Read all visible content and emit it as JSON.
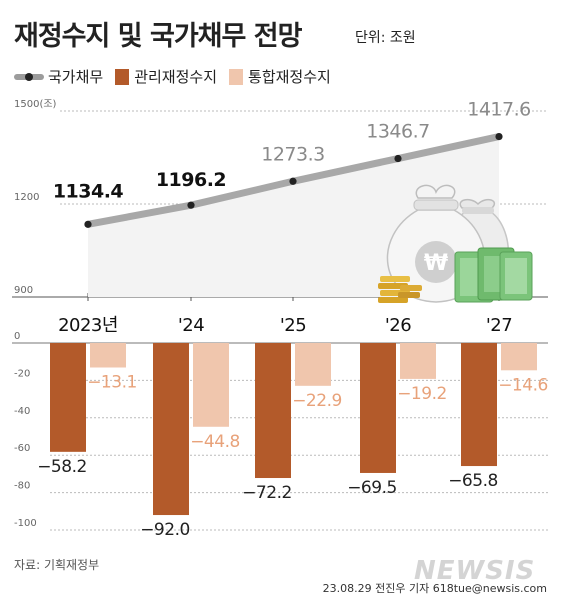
{
  "header": {
    "title": "재정수지 및 국가채무 전망",
    "unit": "단위: 조원"
  },
  "footer": {
    "source": "자료: 기획재정부",
    "credit": "23.08.29 전진우 기자 618tue@newsis.com",
    "watermark": "NEWSIS"
  },
  "colors": {
    "debt_line": "#a8a8a8",
    "debt_area": "#f3f3f3",
    "managed_balance": "#b35a2a",
    "consolidated_balance": "#f0c6ad",
    "consolidated_label": "#e8a27a",
    "grid": "#bbbbbb"
  },
  "icons": [
    "money-bag-icon",
    "coin-stack-icon",
    "banknote-stack-icon"
  ],
  "chart_data": [
    {
      "type": "line",
      "title": "재정수지 및 국가채무 전망",
      "categories": [
        "2023년",
        "'24",
        "'25",
        "'26",
        "'27"
      ],
      "series": [
        {
          "name": "국가채무",
          "values": [
            1134.4,
            1196.2,
            1273.3,
            1346.7,
            1417.6
          ],
          "labels": [
            "1134.4",
            "1196.2",
            "1273.3",
            "1346.7",
            "1417.6"
          ]
        }
      ],
      "ylim": [
        900,
        1500
      ],
      "yticks": [
        "900",
        "1200",
        "1500(조)"
      ],
      "grid": true
    },
    {
      "type": "bar",
      "categories": [
        "2023년",
        "'24",
        "'25",
        "'26",
        "'27"
      ],
      "series": [
        {
          "name": "관리재정수지",
          "values": [
            -58.2,
            -92.0,
            -72.2,
            -69.5,
            -65.8
          ],
          "labels": [
            "−58.2",
            "−92.0",
            "−72.2",
            "−69.5",
            "−65.8"
          ]
        },
        {
          "name": "통합재정수지",
          "values": [
            -13.1,
            -44.8,
            -22.9,
            -19.2,
            -14.6
          ],
          "labels": [
            "−13.1",
            "−44.8",
            "−22.9",
            "−19.2",
            "−14.6"
          ]
        }
      ],
      "ylim": [
        -100,
        0
      ],
      "yticks": [
        "0",
        "-20",
        "-40",
        "-60",
        "-80",
        "-100"
      ],
      "grid": true
    }
  ]
}
